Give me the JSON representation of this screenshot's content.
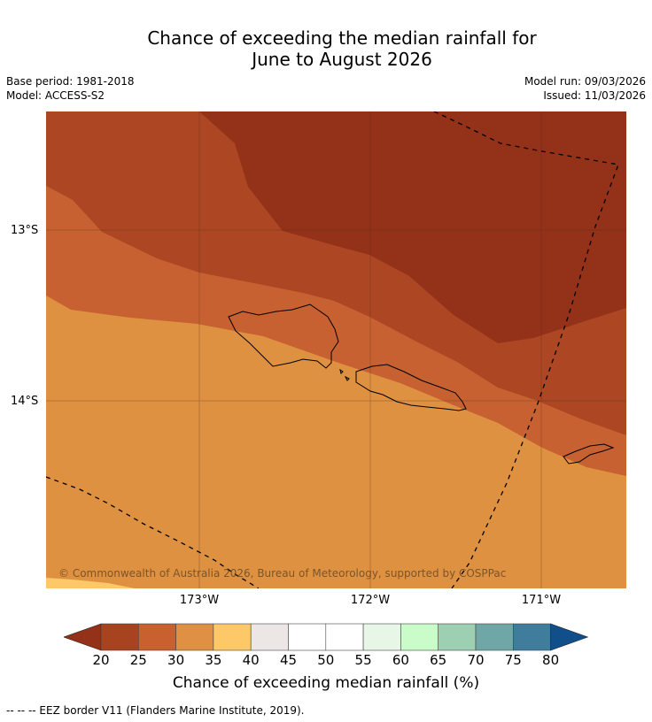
{
  "title_line1": "Chance of exceeding the median rainfall for",
  "title_line2": "June to August 2026",
  "meta": {
    "base_period": "Base period: 1981-2018",
    "model": "Model: ACCESS-S2",
    "model_run": "Model run: 09/03/2026",
    "issued": "Issued: 11/03/2026"
  },
  "map": {
    "lat_labels": [
      "13°S",
      "14°S"
    ],
    "lon_labels": [
      "173°W",
      "172°W",
      "171°W"
    ],
    "copyright": "© Commonwealth of Australia 2026, Bureau of Meteorology, supported by COSPPac"
  },
  "colorbar": {
    "ticks": [
      "20",
      "25",
      "30",
      "35",
      "40",
      "45",
      "50",
      "55",
      "60",
      "65",
      "70",
      "75",
      "80"
    ],
    "colors": [
      "#a8431f",
      "#c8612e",
      "#df9042",
      "#fdc867",
      "#ece7e4",
      "#ffffff",
      "#ffffff",
      "#e8f6e8",
      "#c9fcc9",
      "#9dcfb3",
      "#6fa7a6",
      "#407c9c"
    ],
    "low_extend_color": "#933219",
    "high_extend_color": "#104f8a",
    "label": "Chance of exceeding median rainfall (%)"
  },
  "legend_footer": "--  --  -- EEZ border V11 (Flanders Marine Institute, 2019)."
}
